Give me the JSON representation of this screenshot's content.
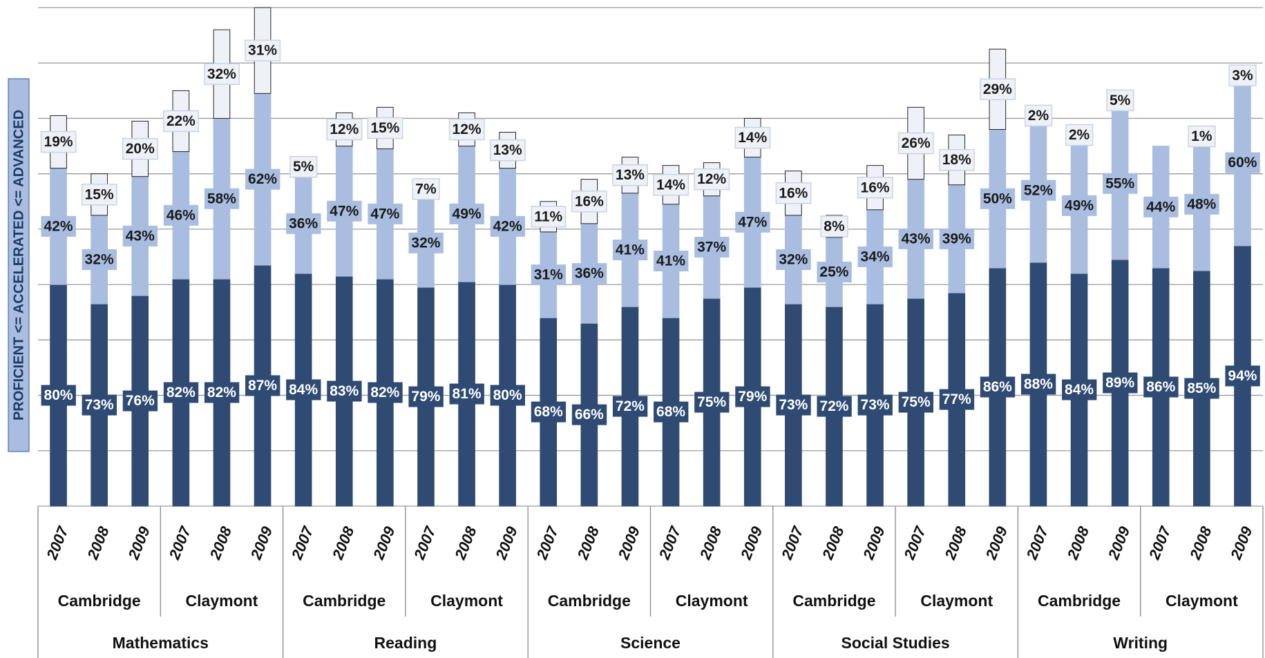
{
  "chart_data": {
    "type": "stacked-bar",
    "y_axis_label": "PROFICIENT <= ACCELERATED <= ADVANCED",
    "categories": [
      "2007",
      "2008",
      "2009",
      "2007",
      "2008",
      "2009",
      "2007",
      "2008",
      "2009",
      "2007",
      "2008",
      "2009",
      "2007",
      "2008",
      "2009",
      "2007",
      "2008",
      "2009",
      "2007",
      "2008",
      "2009",
      "2007",
      "2008",
      "2009",
      "2007",
      "2008",
      "2009",
      "2007",
      "2008",
      "2009"
    ],
    "schools": [
      "Cambridge",
      "Claymont",
      "Cambridge",
      "Claymont",
      "Cambridge",
      "Claymont",
      "Cambridge",
      "Claymont",
      "Cambridge",
      "Claymont"
    ],
    "subjects": [
      "Mathematics",
      "Reading",
      "Science",
      "Social Studies",
      "Writing"
    ],
    "series": [
      {
        "color": "#2f4b73",
        "label_color": "#ffffff",
        "values": [
          80,
          73,
          76,
          82,
          82,
          87,
          84,
          83,
          82,
          79,
          81,
          80,
          68,
          66,
          72,
          68,
          75,
          79,
          73,
          72,
          73,
          75,
          77,
          86,
          88,
          84,
          89,
          86,
          85,
          94
        ],
        "value_labels": [
          "80%",
          "73%",
          "76%",
          "82%",
          "82%",
          "87%",
          "84%",
          "83%",
          "82%",
          "79%",
          "81%",
          "80%",
          "68%",
          "66%",
          "72%",
          "68%",
          "75%",
          "79%",
          "73%",
          "72%",
          "73%",
          "75%",
          "77%",
          "86%",
          "88%",
          "84%",
          "89%",
          "86%",
          "85%",
          "94%"
        ]
      },
      {
        "color": "#a8bde0",
        "label_color": "#1a1a1a",
        "values": [
          42,
          32,
          43,
          46,
          58,
          62,
          36,
          47,
          47,
          32,
          49,
          42,
          31,
          36,
          41,
          41,
          37,
          47,
          32,
          25,
          34,
          43,
          39,
          50,
          52,
          49,
          55,
          44,
          48,
          60
        ],
        "value_labels": [
          "42%",
          "32%",
          "43%",
          "46%",
          "58%",
          "62%",
          "36%",
          "47%",
          "47%",
          "32%",
          "49%",
          "42%",
          "31%",
          "36%",
          "41%",
          "41%",
          "37%",
          "47%",
          "32%",
          "25%",
          "34%",
          "43%",
          "39%",
          "50%",
          "52%",
          "49%",
          "55%",
          "44%",
          "48%",
          "60%"
        ]
      },
      {
        "color": "#eef2f8",
        "label_color": "#1a1a1a",
        "values": [
          19,
          15,
          20,
          22,
          32,
          31,
          5,
          12,
          15,
          7,
          12,
          13,
          11,
          16,
          13,
          14,
          12,
          14,
          16,
          8,
          16,
          26,
          18,
          29,
          2,
          2,
          5,
          null,
          1,
          3
        ],
        "value_labels": [
          "19%",
          "15%",
          "20%",
          "22%",
          "32%",
          "31%",
          "5%",
          "12%",
          "15%",
          "7%",
          "12%",
          "13%",
          "11%",
          "16%",
          "13%",
          "14%",
          "12%",
          "14%",
          "16%",
          "8%",
          "16%",
          "26%",
          "18%",
          "29%",
          "2%",
          "2%",
          "5%",
          null,
          "1%",
          "3%"
        ]
      }
    ],
    "ylim": [
      0,
      180
    ],
    "yticks": [
      0,
      20,
      40,
      60,
      80,
      100,
      120,
      140,
      160,
      180
    ],
    "grid": true
  }
}
